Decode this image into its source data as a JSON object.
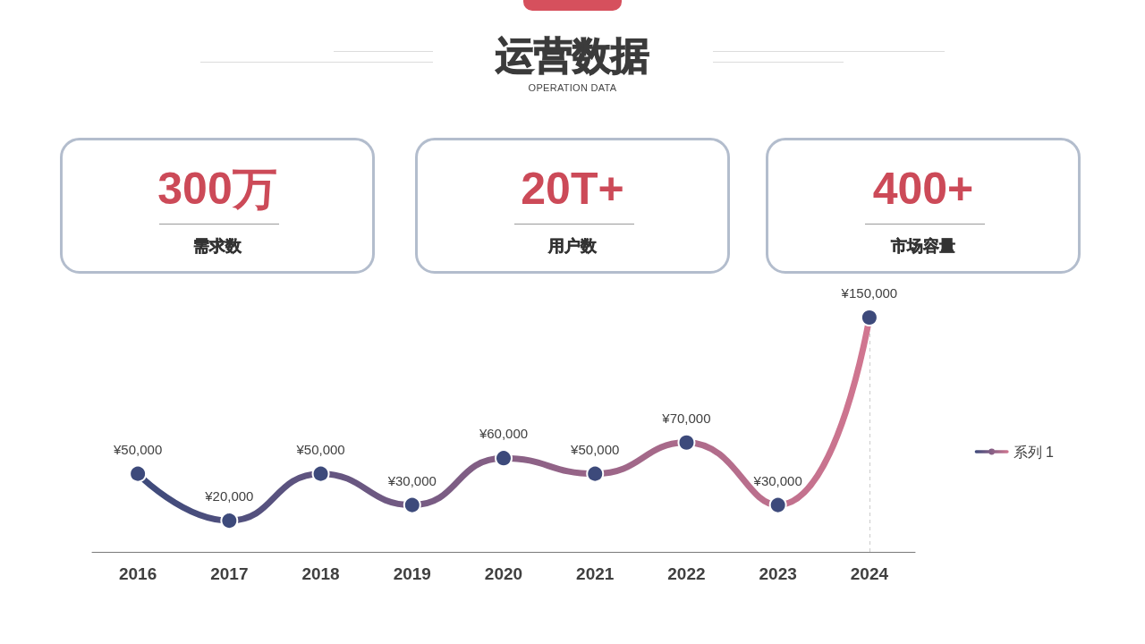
{
  "chart_data": [
    {
      "type": "other",
      "title": "运营数据",
      "subtitle": "OPERATION DATA"
    },
    {
      "type": "other",
      "annotations": [
        "300万",
        "需求数"
      ]
    },
    {
      "type": "other",
      "annotations": [
        "20T+",
        "用户数"
      ]
    },
    {
      "type": "other",
      "annotations": [
        "400+",
        "市场容量"
      ]
    },
    {
      "type": "line",
      "categories": [
        "2016",
        "2017",
        "2018",
        "2019",
        "2020",
        "2021",
        "2022",
        "2023",
        "2024"
      ],
      "series": [
        {
          "name": "系列 1",
          "color": "#3d4a7b",
          "values": [
            50000,
            20000,
            50000,
            30000,
            60000,
            50000,
            70000,
            30000,
            150000
          ],
          "value_labels": [
            "¥50,000",
            "¥20,000",
            "¥50,000",
            "¥30,000",
            "¥60,000",
            "¥50,000",
            "¥70,000",
            "¥30,000",
            "¥150,000"
          ]
        }
      ],
      "marker": "circle",
      "line_style": "solid",
      "legend": "right",
      "tick_labels": "x",
      "ref_lines": [
        {
          "axis": "x",
          "value": "2024",
          "color": "#cccccc",
          "line_style": "dashed"
        }
      ]
    }
  ]
}
